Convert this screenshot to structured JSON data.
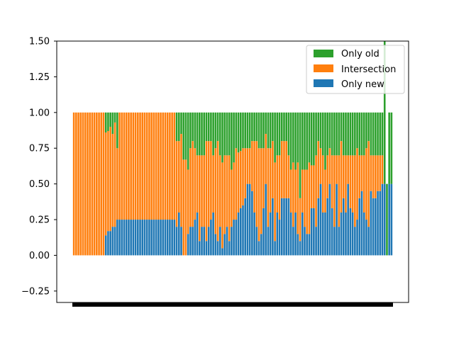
{
  "chart_data": {
    "type": "bar",
    "stacked": true,
    "title": "",
    "xlabel": "",
    "ylabel": "",
    "ylim": [
      -0.33,
      1.5
    ],
    "yticks": [
      -0.25,
      0.0,
      0.25,
      0.5,
      0.75,
      1.0,
      1.25,
      1.5
    ],
    "ytick_labels": [
      "−0.25",
      "0.00",
      "0.25",
      "0.50",
      "0.75",
      "1.00",
      "1.25",
      "1.50"
    ],
    "grid": false,
    "legend_position": "top-right",
    "colors": {
      "only_new": "#1f77b4",
      "intersection": "#ff7f0e",
      "only_old": "#2ca02c"
    },
    "legend": [
      "Only old",
      "Intersection",
      "Only new"
    ],
    "bar_count": 140,
    "only_new": [
      0,
      0,
      0,
      0,
      0,
      0,
      0,
      0,
      0,
      0,
      0,
      0,
      0,
      0,
      0.14,
      0.17,
      0.17,
      0.2,
      0.2,
      0.25,
      0.25,
      0.25,
      0.25,
      0.25,
      0.25,
      0.25,
      0.25,
      0.25,
      0.25,
      0.25,
      0.25,
      0.25,
      0.25,
      0.25,
      0.25,
      0.25,
      0.25,
      0.25,
      0.25,
      0.25,
      0.25,
      0.25,
      0.25,
      0.25,
      0.25,
      0.2,
      0.3,
      0.2,
      0.0,
      0.0,
      0.15,
      0.2,
      0.2,
      0.25,
      0.3,
      0.1,
      0.2,
      0.2,
      0.1,
      0.2,
      0.25,
      0.3,
      0.15,
      0.1,
      0.2,
      0.05,
      0.15,
      0.2,
      0.1,
      0.2,
      0.25,
      0.25,
      0.3,
      0.33,
      0.35,
      0.4,
      0.5,
      0.5,
      0.45,
      0.3,
      0.2,
      0.1,
      0.15,
      0.33,
      0.5,
      0.2,
      0.3,
      0.4,
      0.1,
      0.3,
      0.25,
      0.4,
      0.4,
      0.4,
      0.4,
      0.3,
      0.2,
      0.3,
      0.15,
      0.1,
      0.3,
      0.2,
      0.15,
      0.15,
      0.33,
      0.33,
      0.2,
      0.4,
      0.5,
      0.3,
      0.3,
      0.4,
      0.5,
      0.33,
      0.2,
      0.5,
      0.2,
      0.3,
      0.4,
      0.3,
      0.5,
      0.33,
      0.3,
      0.2,
      0.25,
      0.4,
      0.45,
      0.3,
      0.25,
      0.2,
      0.45,
      0.4,
      0.4,
      0.45,
      0.45,
      0.5,
      0.5,
      0.0,
      0.5,
      0.5
    ],
    "intersection": [
      1,
      1,
      1,
      1,
      1,
      1,
      1,
      1,
      1,
      1,
      1,
      1,
      1,
      1,
      0.72,
      0.7,
      0.73,
      0.65,
      0.73,
      0.5,
      0.75,
      0.75,
      0.75,
      0.75,
      0.75,
      0.75,
      0.75,
      0.75,
      0.75,
      0.75,
      0.75,
      0.75,
      0.75,
      0.75,
      0.75,
      0.75,
      0.75,
      0.75,
      0.75,
      0.75,
      0.75,
      0.75,
      0.75,
      0.75,
      0.75,
      0.6,
      0.5,
      0.65,
      0.67,
      0.67,
      0.45,
      0.55,
      0.6,
      0.5,
      0.4,
      0.6,
      0.5,
      0.5,
      0.7,
      0.6,
      0.55,
      0.4,
      0.6,
      0.7,
      0.5,
      0.6,
      0.55,
      0.5,
      0.6,
      0.4,
      0.4,
      0.5,
      0.42,
      0.4,
      0.4,
      0.35,
      0.25,
      0.25,
      0.35,
      0.5,
      0.6,
      0.65,
      0.6,
      0.42,
      0.35,
      0.55,
      0.45,
      0.4,
      0.55,
      0.4,
      0.45,
      0.4,
      0.4,
      0.4,
      0.3,
      0.3,
      0.45,
      0.3,
      0.5,
      0.3,
      0.3,
      0.4,
      0.45,
      0.5,
      0.3,
      0.3,
      0.5,
      0.4,
      0.25,
      0.4,
      0.3,
      0.3,
      0.25,
      0.37,
      0.5,
      0.2,
      0.5,
      0.5,
      0.3,
      0.4,
      0.2,
      0.37,
      0.4,
      0.5,
      0.5,
      0.3,
      0.25,
      0.4,
      0.5,
      0.6,
      0.25,
      0.3,
      0.3,
      0.25,
      0.25,
      0.2,
      0.0,
      0.0,
      0.0,
      0.0
    ],
    "only_old": [
      0,
      0,
      0,
      0,
      0,
      0,
      0,
      0,
      0,
      0,
      0,
      0,
      0,
      0,
      0.14,
      0.13,
      0.1,
      0.15,
      0.07,
      0.25,
      0,
      0,
      0,
      0,
      0,
      0,
      0,
      0,
      0,
      0,
      0,
      0,
      0,
      0,
      0,
      0,
      0,
      0,
      0,
      0,
      0,
      0,
      0,
      0,
      0,
      0.2,
      0.2,
      0.15,
      0.33,
      0.33,
      0.4,
      0.25,
      0.2,
      0.25,
      0.3,
      0.3,
      0.3,
      0.3,
      0.2,
      0.2,
      0.2,
      0.3,
      0.25,
      0.2,
      0.3,
      0.35,
      0.3,
      0.3,
      0.3,
      0.4,
      0.35,
      0.25,
      0.28,
      0.27,
      0.25,
      0.25,
      0.25,
      0.25,
      0.2,
      0.2,
      0.2,
      0.25,
      0.25,
      0.25,
      0.15,
      0.25,
      0.25,
      0.2,
      0.35,
      0.3,
      0.3,
      0.2,
      0.2,
      0.2,
      0.3,
      0.4,
      0.35,
      0.4,
      0.35,
      0.6,
      0.4,
      0.4,
      0.4,
      0.35,
      0.37,
      0.37,
      0.3,
      0.2,
      0.25,
      0.3,
      0.4,
      0.3,
      0.25,
      0.3,
      0.3,
      0.3,
      0.3,
      0.2,
      0.3,
      0.3,
      0.3,
      0.3,
      0.3,
      0.3,
      0.25,
      0.3,
      0.3,
      0.3,
      0.25,
      0.2,
      0.3,
      0.3,
      0.3,
      0.3,
      0.3,
      0.3,
      1.0,
      0.5,
      0.5,
      0.5
    ]
  }
}
